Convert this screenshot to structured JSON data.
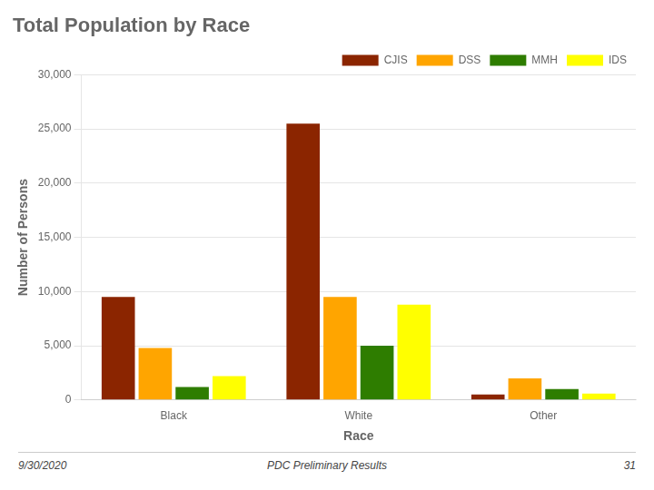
{
  "chart_data": {
    "type": "bar",
    "title": "Total Population by Race",
    "xlabel": "Race",
    "ylabel": "Number of Persons",
    "categories": [
      "Black",
      "White",
      "Other"
    ],
    "series": [
      {
        "name": "CJIS",
        "color": "#8B2500",
        "values": [
          9500,
          25500,
          500
        ]
      },
      {
        "name": "DSS",
        "color": "#FFA500",
        "values": [
          4800,
          9500,
          2000
        ]
      },
      {
        "name": "MMH",
        "color": "#2E7D00",
        "values": [
          1200,
          5000,
          1000
        ]
      },
      {
        "name": "IDS",
        "color": "#FFFF00",
        "values": [
          2200,
          8800,
          600
        ]
      }
    ],
    "ylim": [
      0,
      30000
    ],
    "yticks": [
      0,
      {
        "value": 5000,
        "label": "5,000"
      },
      {
        "value": 10000,
        "label": "10,000"
      },
      {
        "value": 15000,
        "label": "15,000"
      },
      {
        "value": 20000,
        "label": "20,000"
      },
      {
        "value": 25000,
        "label": "25,000"
      },
      {
        "value": 30000,
        "label": "30,000"
      }
    ],
    "grid": true,
    "legend": "upper right",
    "annotations": [
      "9/30/2020",
      "PDC Preliminary Results",
      "31"
    ]
  }
}
